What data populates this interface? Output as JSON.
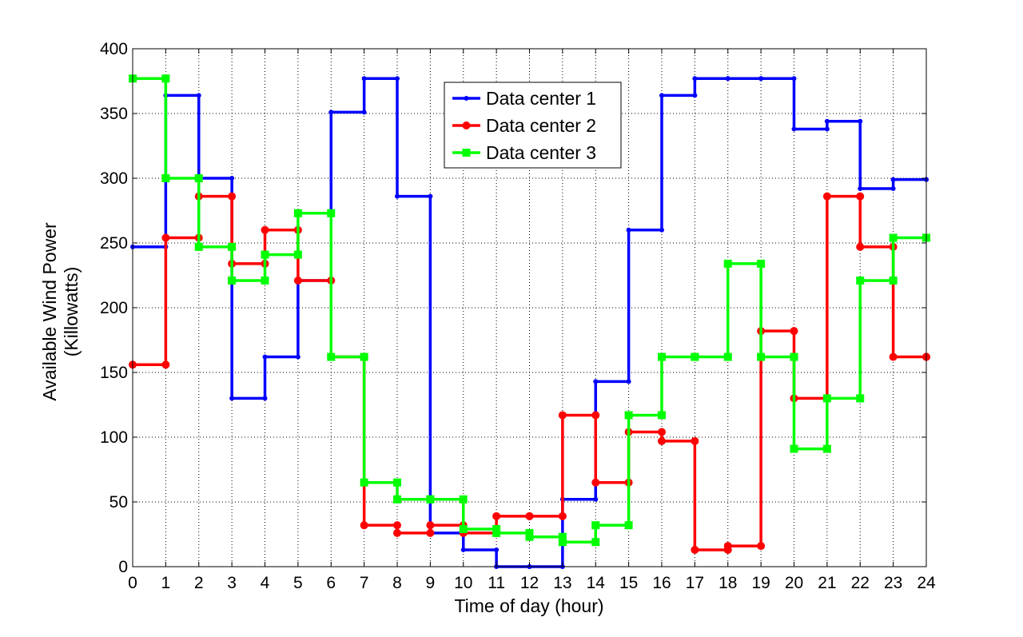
{
  "chart_data": {
    "type": "line",
    "step": true,
    "xlabel": "Time of day (hour)",
    "ylabel": [
      "Available Wind Power",
      "(Killowatts)"
    ],
    "xlim": [
      0,
      24
    ],
    "ylim": [
      0,
      400
    ],
    "x_ticks": [
      0,
      1,
      2,
      3,
      4,
      5,
      6,
      7,
      8,
      9,
      10,
      11,
      12,
      13,
      14,
      15,
      16,
      17,
      18,
      19,
      20,
      21,
      22,
      23,
      24
    ],
    "y_ticks": [
      0,
      50,
      100,
      150,
      200,
      250,
      300,
      350,
      400
    ],
    "grid": true,
    "legend_position": "top-center",
    "x": [
      0,
      1,
      2,
      3,
      4,
      5,
      6,
      7,
      8,
      9,
      10,
      11,
      12,
      13,
      14,
      15,
      16,
      17,
      18,
      19,
      20,
      21,
      22,
      23,
      24
    ],
    "series": [
      {
        "name": "Data center 1",
        "color": "#0000ff",
        "marker": "point",
        "values": [
          247,
          364,
          300,
          130,
          162,
          221,
          351,
          377,
          286,
          26,
          13,
          0,
          0,
          52,
          143,
          260,
          364,
          377,
          377,
          377,
          338,
          344,
          292,
          299,
          299
        ]
      },
      {
        "name": "Data center 2",
        "color": "#ff0000",
        "marker": "circle",
        "values": [
          156,
          254,
          286,
          234,
          260,
          221,
          162,
          32,
          26,
          32,
          26,
          39,
          39,
          117,
          65,
          104,
          97,
          13,
          16,
          182,
          130,
          286,
          247,
          162,
          162
        ]
      },
      {
        "name": "Data center 3",
        "color": "#00ff00",
        "marker": "square",
        "values": [
          377,
          300,
          247,
          221,
          241,
          273,
          162,
          65,
          52,
          52,
          29,
          26,
          23,
          19,
          32,
          117,
          162,
          162,
          234,
          162,
          91,
          130,
          221,
          254,
          254
        ]
      }
    ]
  }
}
